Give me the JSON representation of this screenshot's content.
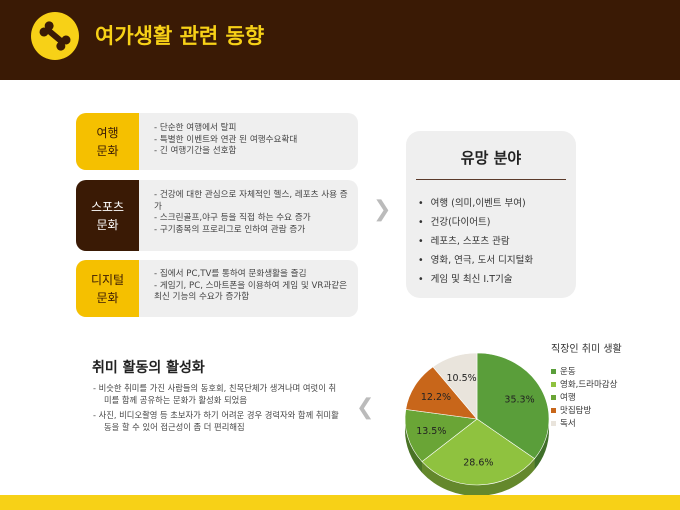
{
  "header": {
    "title": "여가생활 관련 동향",
    "icon": "bone-icon"
  },
  "rows": [
    {
      "label": "여행\n문화",
      "items": [
        "- 단순한 여행에서 탈피",
        "- 특별한 이벤트와 연관 된 여행수요확대",
        "- 긴 여행기간을 선호함"
      ]
    },
    {
      "label": "스포츠\n문화",
      "items": [
        "- 건강에 대한 관심으로 자체적인 헬스, 레포츠 사용 증가",
        "- 스크린골프,야구 등을 직접 하는 수요 증가",
        "- 구기종목의 프로리그로 인하여 관람 증가"
      ]
    },
    {
      "label": "디지털\n문화",
      "items": [
        "- 집에서 PC,TV를 통하여 문화생활을 즐김",
        "- 게임기, PC, 스마트폰을 이용하여 게임 및 VR과같은 최신 기능의 수요가 증가함"
      ]
    }
  ],
  "panel": {
    "title": "유망 분야",
    "items": [
      "여행 (의미,이벤트 부여)",
      "건강(다이어트)",
      "레포츠, 스포츠 관람",
      "영화, 연극, 도서 디지털화",
      "게임 및 최신 I.T기술"
    ]
  },
  "hobby": {
    "title": "취미 활동의 활성화",
    "items": [
      "- 비슷한 취미를 가진 사람들의 동호회, 친목단체가 생겨나며 여럿이 취미를 함께 공유하는 문화가 활성화 되었음",
      "- 사진, 비디오촬영 등 초보자가 하기 어려운 경우 경력자와 함께 취미활동을 할 수 있어 접근성이 좀 더 편리해짐"
    ]
  },
  "chart_data": {
    "type": "pie",
    "title": "직장인 취미 생활",
    "legend": "right",
    "categories": [
      "운동",
      "영화,드라마감상",
      "여행",
      "맛집탐방",
      "독서"
    ],
    "values": [
      35.3,
      28.6,
      13.5,
      12.2,
      10.5
    ],
    "labels": [
      "35.3%",
      "28.6%",
      "13.5%",
      "12.2%",
      "10.5%"
    ],
    "colors": [
      "#5a9e3a",
      "#8fc23f",
      "#6aa536",
      "#c8661a",
      "#e9e4dc"
    ]
  }
}
